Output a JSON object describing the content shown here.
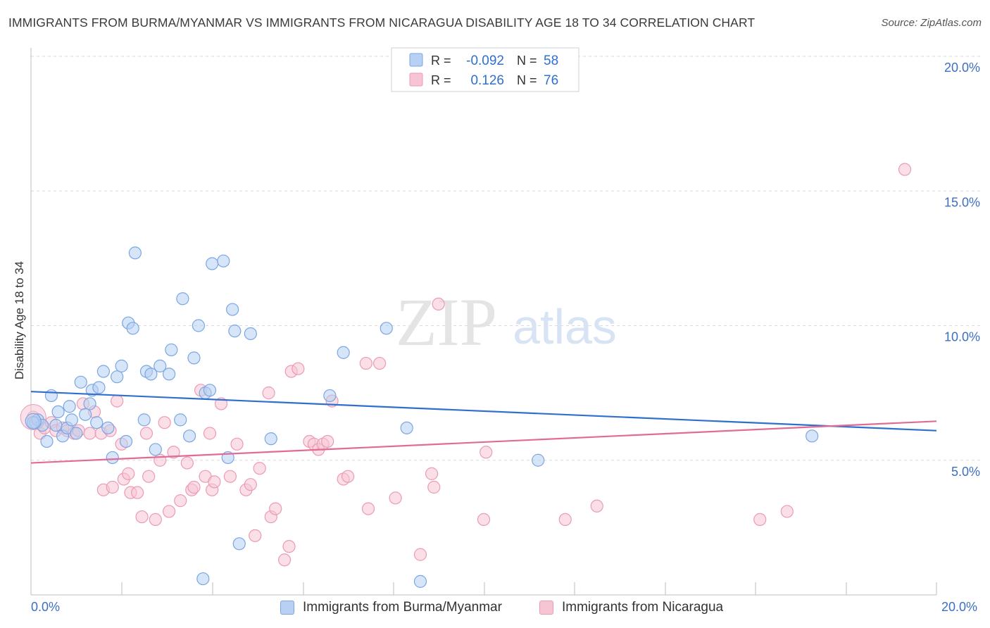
{
  "header": {
    "title": "IMMIGRANTS FROM BURMA/MYANMAR VS IMMIGRANTS FROM NICARAGUA DISABILITY AGE 18 TO 34 CORRELATION CHART",
    "source": "Source: ZipAtlas.com"
  },
  "colors": {
    "blue_fill": "#b7d0f3",
    "blue_stroke": "#7aa6e3",
    "blue_line": "#2f6fce",
    "pink_fill": "#f6c4d3",
    "pink_stroke": "#ec9ab5",
    "pink_line": "#e26b96",
    "axis_text": "#3b6fc4",
    "grid": "#d9d9d9"
  },
  "legend": {
    "blue": {
      "r_label": "R =",
      "r_value": "-0.092",
      "n_label": "N =",
      "n_value": "58"
    },
    "pink": {
      "r_label": "R =",
      "r_value": "0.126",
      "n_label": "N =",
      "n_value": "76"
    }
  },
  "watermark": {
    "zip": "ZIP",
    "atlas": "atlas"
  },
  "bottom_legend": {
    "blue_label": "Immigrants from Burma/Myanmar",
    "pink_label": "Immigrants from Nicaragua"
  },
  "chart_data": {
    "type": "scatter",
    "title": "IMMIGRANTS FROM BURMA/MYANMAR VS IMMIGRANTS FROM NICARAGUA DISABILITY AGE 18 TO 34 CORRELATION CHART",
    "xlabel": "",
    "ylabel": "Disability Age 18 to 34",
    "xlim": [
      0,
      20
    ],
    "ylim": [
      0,
      20
    ],
    "x_tick_labels": [
      "0.0%",
      "20.0%"
    ],
    "y_ticks": [
      5,
      10,
      15,
      20
    ],
    "y_tick_labels": [
      "5.0%",
      "10.0%",
      "15.0%",
      "20.0%"
    ],
    "grid": true,
    "legend_position": "top-center",
    "series": [
      {
        "name": "Immigrants from Burma/Myanmar",
        "color": "#7aa6e3",
        "trend": {
          "x": [
            0,
            20
          ],
          "y": [
            7.55,
            6.1
          ]
        },
        "points": [
          [
            0.1,
            6.4
          ],
          [
            0.15,
            6.5
          ],
          [
            0.25,
            6.3
          ],
          [
            0.35,
            5.7
          ],
          [
            0.45,
            7.4
          ],
          [
            0.6,
            6.8
          ],
          [
            0.7,
            5.9
          ],
          [
            0.8,
            6.2
          ],
          [
            0.85,
            7.0
          ],
          [
            0.9,
            6.5
          ],
          [
            1.0,
            6.0
          ],
          [
            1.1,
            7.9
          ],
          [
            1.2,
            6.7
          ],
          [
            1.3,
            7.1
          ],
          [
            1.35,
            7.6
          ],
          [
            1.45,
            6.4
          ],
          [
            1.5,
            7.7
          ],
          [
            1.6,
            8.3
          ],
          [
            1.7,
            6.2
          ],
          [
            1.8,
            5.1
          ],
          [
            1.9,
            8.1
          ],
          [
            2.0,
            8.5
          ],
          [
            2.1,
            5.7
          ],
          [
            2.15,
            10.1
          ],
          [
            2.25,
            9.9
          ],
          [
            2.3,
            12.7
          ],
          [
            2.5,
            6.5
          ],
          [
            2.55,
            8.3
          ],
          [
            2.65,
            8.2
          ],
          [
            2.75,
            5.4
          ],
          [
            2.85,
            8.5
          ],
          [
            3.05,
            8.2
          ],
          [
            3.1,
            9.1
          ],
          [
            3.3,
            6.5
          ],
          [
            3.35,
            11.0
          ],
          [
            3.5,
            5.9
          ],
          [
            3.6,
            8.8
          ],
          [
            3.7,
            10.0
          ],
          [
            3.8,
            0.6
          ],
          [
            3.85,
            7.5
          ],
          [
            3.95,
            7.6
          ],
          [
            4.0,
            12.3
          ],
          [
            4.25,
            12.4
          ],
          [
            4.35,
            5.1
          ],
          [
            4.45,
            10.6
          ],
          [
            4.5,
            9.8
          ],
          [
            4.6,
            1.9
          ],
          [
            4.85,
            9.7
          ],
          [
            5.3,
            5.8
          ],
          [
            6.6,
            7.4
          ],
          [
            6.9,
            9.0
          ],
          [
            7.85,
            9.9
          ],
          [
            8.3,
            6.2
          ],
          [
            8.6,
            0.5
          ],
          [
            11.2,
            5.0
          ],
          [
            17.25,
            5.9
          ],
          [
            0.05,
            6.4
          ],
          [
            0.55,
            6.3
          ]
        ]
      },
      {
        "name": "Immigrants from Nicaragua",
        "color": "#ec9ab5",
        "trend": {
          "x": [
            0,
            20
          ],
          "y": [
            4.9,
            6.45
          ]
        },
        "points": [
          [
            0.05,
            6.6
          ],
          [
            0.2,
            6.0
          ],
          [
            0.3,
            6.2
          ],
          [
            0.45,
            6.4
          ],
          [
            0.55,
            6.1
          ],
          [
            0.7,
            6.2
          ],
          [
            0.8,
            6.1
          ],
          [
            0.95,
            6.0
          ],
          [
            1.05,
            6.1
          ],
          [
            1.15,
            7.1
          ],
          [
            1.3,
            6.0
          ],
          [
            1.4,
            6.8
          ],
          [
            1.55,
            6.0
          ],
          [
            1.6,
            3.9
          ],
          [
            1.75,
            6.1
          ],
          [
            1.8,
            4.0
          ],
          [
            1.9,
            7.2
          ],
          [
            2.0,
            5.6
          ],
          [
            2.05,
            4.3
          ],
          [
            2.15,
            4.5
          ],
          [
            2.2,
            3.8
          ],
          [
            2.35,
            3.8
          ],
          [
            2.45,
            2.9
          ],
          [
            2.55,
            6.0
          ],
          [
            2.6,
            4.4
          ],
          [
            2.75,
            2.8
          ],
          [
            2.85,
            5.0
          ],
          [
            2.95,
            6.4
          ],
          [
            3.05,
            3.1
          ],
          [
            3.15,
            5.3
          ],
          [
            3.3,
            3.5
          ],
          [
            3.45,
            4.9
          ],
          [
            3.55,
            3.9
          ],
          [
            3.6,
            4.0
          ],
          [
            3.75,
            7.6
          ],
          [
            3.85,
            4.4
          ],
          [
            3.95,
            6.0
          ],
          [
            4.0,
            3.9
          ],
          [
            4.05,
            4.2
          ],
          [
            4.2,
            7.1
          ],
          [
            4.4,
            4.4
          ],
          [
            4.55,
            5.6
          ],
          [
            4.75,
            3.9
          ],
          [
            4.85,
            4.1
          ],
          [
            4.95,
            2.2
          ],
          [
            5.05,
            4.7
          ],
          [
            5.25,
            7.5
          ],
          [
            5.3,
            2.9
          ],
          [
            5.4,
            3.2
          ],
          [
            5.6,
            1.3
          ],
          [
            5.7,
            1.8
          ],
          [
            5.75,
            8.3
          ],
          [
            5.9,
            8.4
          ],
          [
            6.15,
            5.7
          ],
          [
            6.25,
            5.6
          ],
          [
            6.35,
            5.4
          ],
          [
            6.45,
            5.6
          ],
          [
            6.55,
            5.7
          ],
          [
            6.65,
            7.2
          ],
          [
            6.9,
            4.3
          ],
          [
            7.0,
            4.4
          ],
          [
            7.4,
            8.6
          ],
          [
            7.45,
            3.2
          ],
          [
            7.7,
            8.6
          ],
          [
            8.05,
            3.6
          ],
          [
            8.6,
            1.5
          ],
          [
            8.85,
            4.5
          ],
          [
            8.9,
            4.0
          ],
          [
            9.0,
            10.8
          ],
          [
            10.0,
            2.8
          ],
          [
            10.05,
            5.3
          ],
          [
            11.8,
            2.8
          ],
          [
            12.5,
            3.3
          ],
          [
            16.1,
            2.8
          ],
          [
            16.7,
            3.1
          ],
          [
            19.3,
            15.8
          ]
        ]
      }
    ]
  }
}
